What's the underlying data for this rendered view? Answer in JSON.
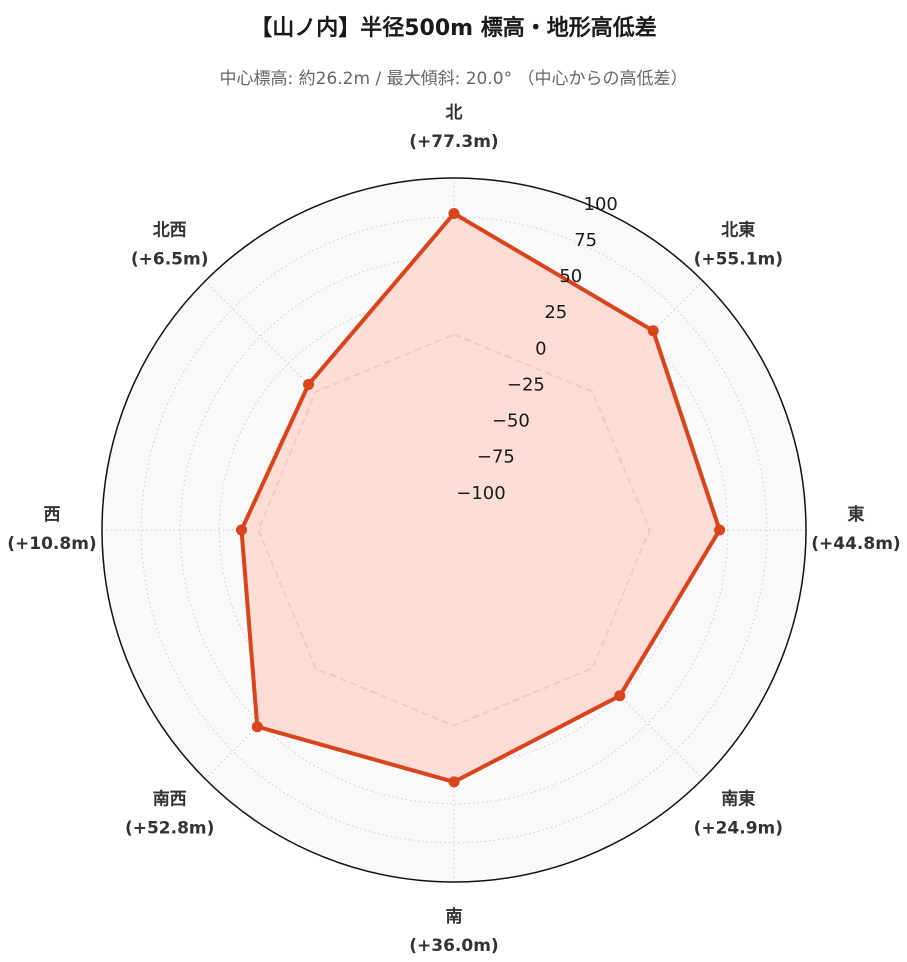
{
  "title": "【山ノ内】半径500m 標高・地形高低差",
  "subtitle": "中心標高: 約26.2m / 最大傾斜: 20.0° （中心からの高低差）",
  "chart_data": {
    "type": "radar",
    "title": "【山ノ内】半径500m 標高・地形高低差",
    "subtitle": "中心標高: 約26.2m / 最大傾斜: 20.0° （中心からの高低差）",
    "directions": [
      "北",
      "北東",
      "東",
      "南東",
      "南",
      "南西",
      "西",
      "北西"
    ],
    "direction_labels": [
      "(+77.3m)",
      "(+55.1m)",
      "(+44.8m)",
      "(+24.9m)",
      "(+36.0m)",
      "(+52.8m)",
      "(+10.8m)",
      "(+6.5m)"
    ],
    "values": [
      77.3,
      55.1,
      44.8,
      24.9,
      36.0,
      52.8,
      10.8,
      6.5
    ],
    "reference_values": [
      0,
      0,
      0,
      0,
      0,
      0,
      0,
      0
    ],
    "radial_range": [
      -125,
      100
    ],
    "radial_ticks": [
      -100,
      -75,
      -50,
      -25,
      0,
      25,
      50,
      75,
      100
    ],
    "radial_tick_labels": [
      "−100",
      "−75",
      "−50",
      "−25",
      "0",
      "25",
      "50",
      "75",
      "100"
    ],
    "grid": true,
    "colors": {
      "series_line": "#d9441c",
      "series_fill": "#fbd8cf",
      "reference_line": "#888888",
      "background": "#f9f9f9",
      "grid": "#cccccc",
      "outline": "#111111"
    }
  }
}
